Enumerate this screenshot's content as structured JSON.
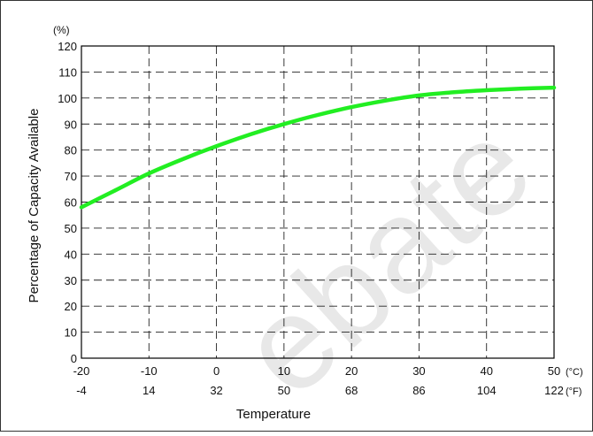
{
  "chart_data": {
    "type": "line",
    "ylabel": "Percentage of Capacity Available",
    "y_unit": "(%)",
    "xlabel": "Temperature",
    "x_unit_celsius": "(°C)",
    "x_unit_fahrenheit": "(°F)",
    "xlim": [
      -20,
      50
    ],
    "ylim": [
      0,
      120
    ],
    "x_ticks_celsius": [
      "-20",
      "-10",
      "0",
      "10",
      "20",
      "30",
      "40",
      "50"
    ],
    "x_ticks_fahrenheit": [
      "-4",
      "14",
      "32",
      "50",
      "68",
      "86",
      "104",
      "122"
    ],
    "y_ticks": [
      "0",
      "10",
      "20",
      "30",
      "40",
      "50",
      "60",
      "70",
      "80",
      "90",
      "100",
      "110",
      "120"
    ],
    "grid": true,
    "series": [
      {
        "color": "#22ee22",
        "x": [
          -20,
          -15,
          -10,
          -5,
          0,
          5,
          10,
          15,
          20,
          25,
          30,
          35,
          40,
          45,
          50
        ],
        "y": [
          58,
          64.5,
          71,
          76.5,
          81.5,
          86,
          90,
          93.5,
          96.5,
          99,
          101,
          102.2,
          103,
          103.6,
          104
        ]
      }
    ],
    "watermark": "ebate",
    "watermark_color": "#e8e8e8"
  }
}
